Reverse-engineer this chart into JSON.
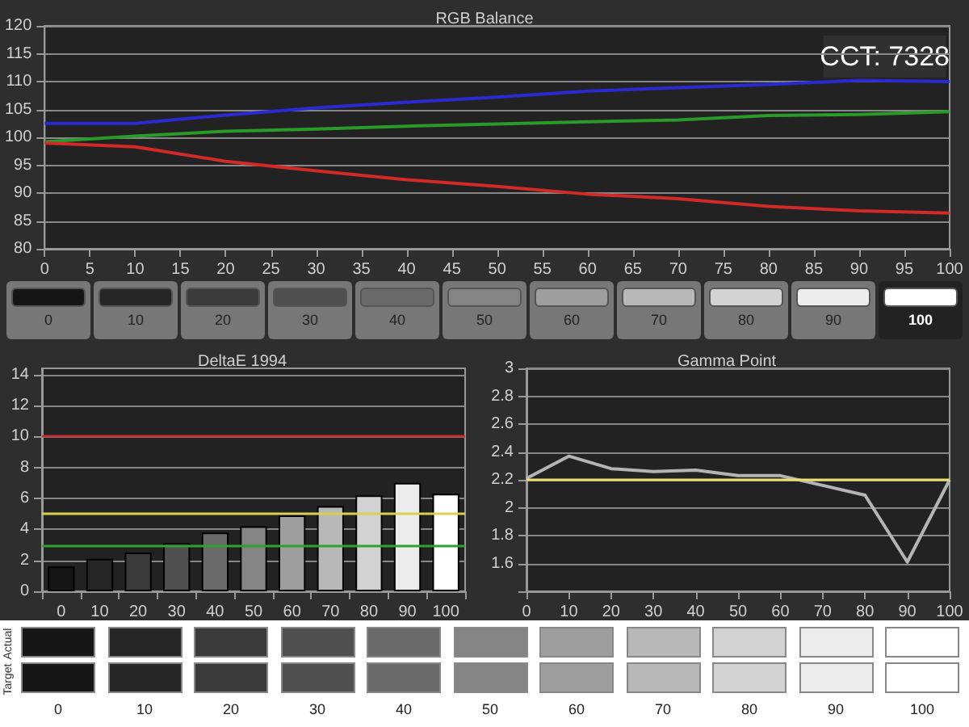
{
  "chart_data": [
    {
      "type": "line",
      "title": "RGB Balance",
      "x": [
        0,
        10,
        20,
        30,
        40,
        50,
        60,
        70,
        80,
        90,
        100
      ],
      "xlim": [
        0,
        100
      ],
      "xticks": [
        0,
        5,
        10,
        15,
        20,
        25,
        30,
        35,
        40,
        45,
        50,
        55,
        60,
        65,
        70,
        75,
        80,
        85,
        90,
        95,
        100
      ],
      "ylim": [
        80,
        120
      ],
      "yticks": [
        80,
        85,
        90,
        95,
        100,
        105,
        110,
        115,
        120
      ],
      "grid": "y",
      "marker": "none",
      "annotations": [
        "CCT: 7328"
      ],
      "series": [
        {
          "color": "#2a2ad0",
          "values": [
            102.5,
            102.5,
            104,
            105.3,
            106.3,
            107.2,
            108.3,
            108.9,
            109.5,
            110.2,
            110
          ]
        },
        {
          "color": "#2a9a2a",
          "values": [
            99.2,
            100.2,
            101.1,
            101.5,
            102,
            102.4,
            102.8,
            103.1,
            103.9,
            104.1,
            104.6
          ]
        },
        {
          "color": "#d02a2a",
          "values": [
            99,
            98.3,
            95.7,
            94,
            92.4,
            91.2,
            89.8,
            89,
            87.6,
            86.8,
            86.4
          ]
        }
      ]
    },
    {
      "type": "bar",
      "title": "DeltaE 1994",
      "categories": [
        "0",
        "10",
        "20",
        "30",
        "40",
        "50",
        "60",
        "70",
        "80",
        "90",
        "100"
      ],
      "values": [
        1.6,
        2.1,
        2.5,
        3.1,
        3.8,
        4.2,
        4.9,
        5.5,
        6.2,
        7.0,
        6.3
      ],
      "colors": [
        "#151515",
        "#262626",
        "#3a3a3a",
        "#505050",
        "#6a6a6a",
        "#848484",
        "#9e9e9e",
        "#b8b8b8",
        "#d2d2d2",
        "#ececec",
        "#ffffff"
      ],
      "ylim": [
        0,
        14.4
      ],
      "yticks": [
        0,
        2,
        4,
        6,
        8,
        10,
        12,
        14
      ],
      "grid": "y",
      "annotations": [
        "Actual",
        "Target"
      ],
      "ref_lines": [
        {
          "axis": "y",
          "value": 10,
          "color": "#c03030"
        },
        {
          "axis": "y",
          "value": 5,
          "color": "#d8d050"
        },
        {
          "axis": "y",
          "value": 3,
          "color": "#30a030"
        }
      ]
    },
    {
      "type": "line",
      "title": "Gamma Point",
      "x": [
        0,
        10,
        20,
        30,
        40,
        50,
        60,
        70,
        80,
        90,
        100
      ],
      "xlim": [
        0,
        100
      ],
      "xticks": [
        0,
        10,
        20,
        30,
        40,
        50,
        60,
        70,
        80,
        90,
        100
      ],
      "ylim": [
        1.4,
        3
      ],
      "yticks": [
        {
          "value": 1.4,
          "label": null
        },
        1.6,
        1.8,
        2,
        2.2,
        2.4,
        2.6,
        2.8,
        3
      ],
      "grid": "y",
      "marker": "none",
      "series": [
        {
          "color": "#b4b4b4",
          "values": [
            2.21,
            2.37,
            2.28,
            2.26,
            2.27,
            2.23,
            2.23,
            2.16,
            2.09,
            1.61,
            2.2
          ]
        }
      ],
      "ref_lines": [
        {
          "axis": "y",
          "value": 2.2,
          "color": "#e8e070"
        }
      ]
    }
  ]
}
